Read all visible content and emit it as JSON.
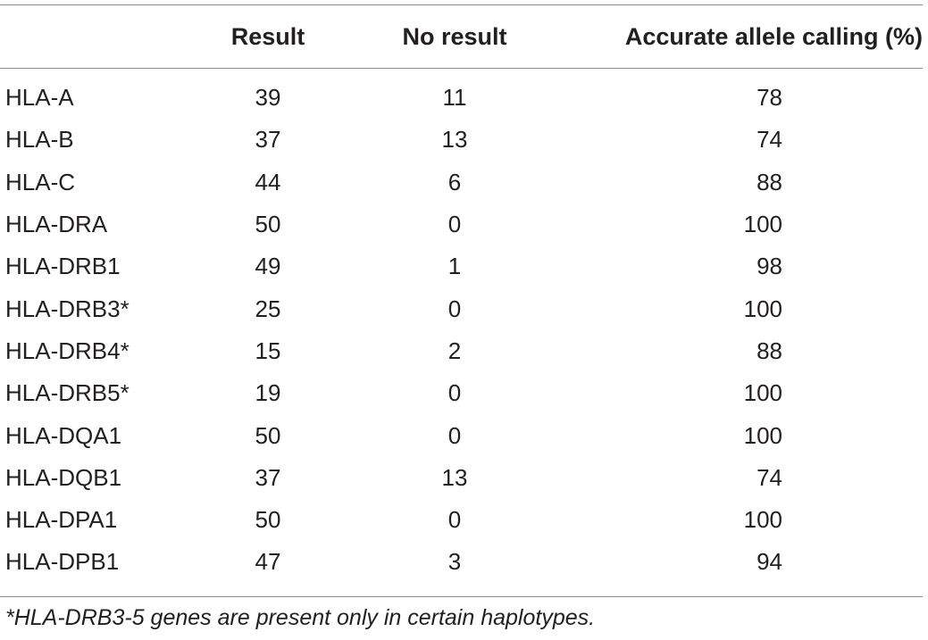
{
  "table": {
    "headers": [
      "",
      "Result",
      "No result",
      "Accurate allele calling (%)"
    ],
    "rows": [
      {
        "gene": "HLA-A",
        "result": "39",
        "no_result": "11",
        "accuracy": "78"
      },
      {
        "gene": "HLA-B",
        "result": "37",
        "no_result": "13",
        "accuracy": "74"
      },
      {
        "gene": "HLA-C",
        "result": "44",
        "no_result": "6",
        "accuracy": "88"
      },
      {
        "gene": "HLA-DRA",
        "result": "50",
        "no_result": "0",
        "accuracy": "100"
      },
      {
        "gene": "HLA-DRB1",
        "result": "49",
        "no_result": "1",
        "accuracy": "98"
      },
      {
        "gene": "HLA-DRB3*",
        "result": "25",
        "no_result": "0",
        "accuracy": "100"
      },
      {
        "gene": "HLA-DRB4*",
        "result": "15",
        "no_result": "2",
        "accuracy": "88"
      },
      {
        "gene": "HLA-DRB5*",
        "result": "19",
        "no_result": "0",
        "accuracy": "100"
      },
      {
        "gene": "HLA-DQA1",
        "result": "50",
        "no_result": "0",
        "accuracy": "100"
      },
      {
        "gene": "HLA-DQB1",
        "result": "37",
        "no_result": "13",
        "accuracy": "74"
      },
      {
        "gene": "HLA-DPA1",
        "result": "50",
        "no_result": "0",
        "accuracy": "100"
      },
      {
        "gene": "HLA-DPB1",
        "result": "47",
        "no_result": "3",
        "accuracy": "94"
      }
    ],
    "footnote": "*HLA-DRB3-5 genes are present only in certain haplotypes."
  }
}
